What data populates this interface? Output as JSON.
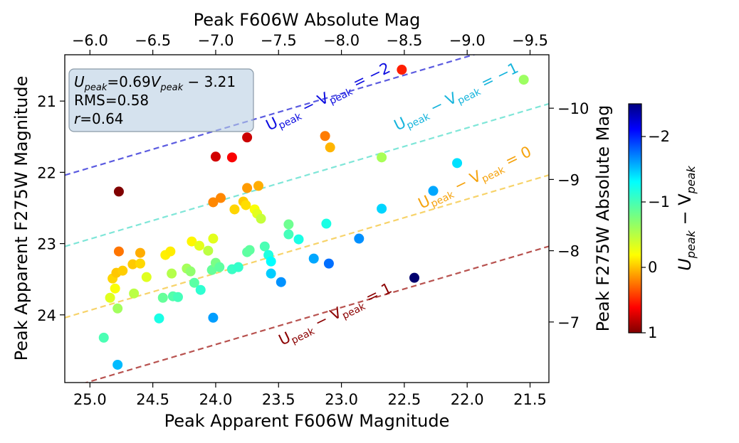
{
  "chart_data": {
    "type": "scatter",
    "xlabel": "Peak Apparent F606W Magnitude",
    "ylabel": "Peak Apparent F275W Magnitude",
    "xlim": [
      25.2,
      21.35
    ],
    "ylim": [
      24.95,
      20.35
    ],
    "x_ticks": [
      "25.0",
      "24.5",
      "24.0",
      "23.5",
      "23.0",
      "22.5",
      "22.0",
      "21.5"
    ],
    "x_tick_values": [
      25.0,
      24.5,
      24.0,
      23.5,
      23.0,
      22.5,
      22.0,
      21.5
    ],
    "y_ticks": [
      "21",
      "22",
      "23",
      "24"
    ],
    "y_tick_values": [
      21,
      22,
      23,
      24
    ],
    "top_axis": {
      "label": "Peak F606W Absolute Mag",
      "ticks": [
        "−6.0",
        "−6.5",
        "−7.0",
        "−7.5",
        "−8.0",
        "−8.5",
        "−9.0",
        "−9.5"
      ],
      "tick_positions": [
        25.0,
        24.5,
        24.0,
        23.5,
        23.0,
        22.5,
        22.0,
        21.5
      ]
    },
    "right_axis": {
      "label": "Peak F275W Absolute Mag",
      "ticks": [
        "−10",
        "−9",
        "−8",
        "−7"
      ],
      "tick_positions": [
        21.1,
        22.1,
        23.1,
        24.1
      ]
    },
    "colorbar": {
      "label": "U_peak − V_peak",
      "range": [
        1,
        -2.5
      ],
      "ticks": [
        "−2",
        "−1",
        "0",
        "1"
      ],
      "tick_values": [
        -2,
        -1,
        0,
        1
      ],
      "colormap": "jet_r"
    },
    "reference_lines": [
      {
        "label": "−2",
        "offset": -2,
        "color": "#5b5be0"
      },
      {
        "label": "−1",
        "offset": -1,
        "color": "#7fe6d8"
      },
      {
        "label": "0",
        "offset": 0,
        "color": "#f7d36a"
      },
      {
        "label": "1",
        "offset": 1,
        "color": "#b8524f"
      }
    ],
    "reference_labels": [
      {
        "text_pre": "U",
        "sub1": "peak",
        "mid": " − V",
        "sub2": "peak",
        "post": " = −2",
        "color": "#0c0ce0"
      },
      {
        "text_pre": "U",
        "sub1": "peak",
        "mid": " − V",
        "sub2": "peak",
        "post": " = −1",
        "color": "#16b4dc"
      },
      {
        "text_pre": "U",
        "sub1": "peak",
        "mid": " − V",
        "sub2": "peak",
        "post": " = 0",
        "color": "#f5a20c"
      },
      {
        "text_pre": "U",
        "sub1": "peak",
        "mid": " − V",
        "sub2": "peak",
        "post": " = 1",
        "color": "#8b0000"
      }
    ],
    "fit_box": {
      "line1_pre": "U",
      "line1_sub1": "peak",
      "line1_mid": "=0.69",
      "line1_v": "V",
      "line1_sub2": "peak",
      "line1_post": " − 3.21",
      "line2": "RMS=0.58",
      "line3_r": "r",
      "line3_post": "=0.64"
    },
    "points": [
      {
        "x": 24.89,
        "y": 24.32
      },
      {
        "x": 24.78,
        "y": 24.7
      },
      {
        "x": 24.84,
        "y": 23.76
      },
      {
        "x": 24.82,
        "y": 23.49
      },
      {
        "x": 24.8,
        "y": 23.63
      },
      {
        "x": 24.78,
        "y": 23.91
      },
      {
        "x": 24.79,
        "y": 23.41
      },
      {
        "x": 24.74,
        "y": 23.38
      },
      {
        "x": 24.77,
        "y": 23.11
      },
      {
        "x": 24.77,
        "y": 22.27
      },
      {
        "x": 24.66,
        "y": 23.29
      },
      {
        "x": 24.6,
        "y": 23.28
      },
      {
        "x": 24.6,
        "y": 23.13
      },
      {
        "x": 24.65,
        "y": 23.7
      },
      {
        "x": 24.55,
        "y": 23.47
      },
      {
        "x": 24.45,
        "y": 24.05
      },
      {
        "x": 24.42,
        "y": 23.76
      },
      {
        "x": 24.4,
        "y": 23.16
      },
      {
        "x": 24.36,
        "y": 23.11
      },
      {
        "x": 24.35,
        "y": 23.42
      },
      {
        "x": 24.34,
        "y": 23.74
      },
      {
        "x": 24.3,
        "y": 23.75
      },
      {
        "x": 24.23,
        "y": 23.35
      },
      {
        "x": 24.2,
        "y": 23.39
      },
      {
        "x": 24.19,
        "y": 22.97
      },
      {
        "x": 24.17,
        "y": 23.55
      },
      {
        "x": 24.13,
        "y": 23.03
      },
      {
        "x": 24.12,
        "y": 23.65
      },
      {
        "x": 24.06,
        "y": 23.1
      },
      {
        "x": 24.03,
        "y": 23.37
      },
      {
        "x": 24.02,
        "y": 24.04
      },
      {
        "x": 24.02,
        "y": 22.93
      },
      {
        "x": 24.0,
        "y": 23.27
      },
      {
        "x": 23.97,
        "y": 23.33
      },
      {
        "x": 24.02,
        "y": 22.42
      },
      {
        "x": 23.96,
        "y": 22.36
      },
      {
        "x": 24.0,
        "y": 21.78
      },
      {
        "x": 23.87,
        "y": 21.79
      },
      {
        "x": 23.85,
        "y": 22.52
      },
      {
        "x": 23.87,
        "y": 23.36
      },
      {
        "x": 23.82,
        "y": 23.33
      },
      {
        "x": 23.78,
        "y": 22.41
      },
      {
        "x": 23.76,
        "y": 22.46
      },
      {
        "x": 23.75,
        "y": 22.22
      },
      {
        "x": 23.75,
        "y": 21.51
      },
      {
        "x": 23.69,
        "y": 22.52
      },
      {
        "x": 23.67,
        "y": 22.58
      },
      {
        "x": 23.66,
        "y": 22.19
      },
      {
        "x": 23.64,
        "y": 22.65
      },
      {
        "x": 23.75,
        "y": 23.12
      },
      {
        "x": 23.73,
        "y": 23.09
      },
      {
        "x": 23.61,
        "y": 23.04
      },
      {
        "x": 23.58,
        "y": 23.16
      },
      {
        "x": 23.56,
        "y": 23.25
      },
      {
        "x": 23.56,
        "y": 23.42
      },
      {
        "x": 23.48,
        "y": 23.54
      },
      {
        "x": 23.42,
        "y": 22.73
      },
      {
        "x": 23.42,
        "y": 22.87
      },
      {
        "x": 23.34,
        "y": 22.94
      },
      {
        "x": 23.22,
        "y": 23.21
      },
      {
        "x": 23.12,
        "y": 22.72
      },
      {
        "x": 23.1,
        "y": 23.28
      },
      {
        "x": 23.13,
        "y": 21.49
      },
      {
        "x": 23.09,
        "y": 21.65
      },
      {
        "x": 22.86,
        "y": 22.93
      },
      {
        "x": 22.68,
        "y": 21.79
      },
      {
        "x": 22.68,
        "y": 22.51
      },
      {
        "x": 22.52,
        "y": 20.56
      },
      {
        "x": 22.42,
        "y": 23.48
      },
      {
        "x": 22.27,
        "y": 22.26
      },
      {
        "x": 22.08,
        "y": 21.87
      },
      {
        "x": 21.55,
        "y": 20.7
      }
    ]
  }
}
